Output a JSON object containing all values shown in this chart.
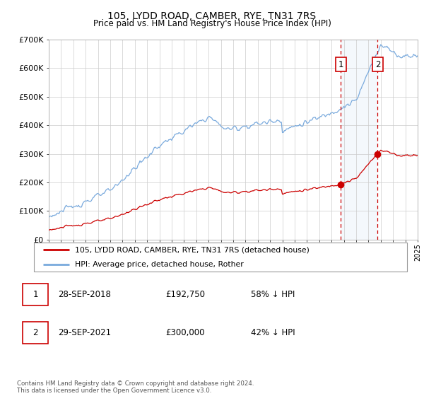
{
  "title": "105, LYDD ROAD, CAMBER, RYE, TN31 7RS",
  "subtitle": "Price paid vs. HM Land Registry's House Price Index (HPI)",
  "legend_line1": "105, LYDD ROAD, CAMBER, RYE, TN31 7RS (detached house)",
  "legend_line2": "HPI: Average price, detached house, Rother",
  "footer": "Contains HM Land Registry data © Crown copyright and database right 2024.\nThis data is licensed under the Open Government Licence v3.0.",
  "transaction1": {
    "label": "1",
    "date": "28-SEP-2018",
    "price": "£192,750",
    "change": "58% ↓ HPI"
  },
  "transaction2": {
    "label": "2",
    "date": "29-SEP-2021",
    "price": "£300,000",
    "change": "42% ↓ HPI"
  },
  "hpi_color": "#7aaadd",
  "price_color": "#cc0000",
  "vline_color": "#cc0000",
  "marker_color": "#cc0000",
  "marker1_x": 2018.75,
  "marker1_y": 192750,
  "marker2_x": 2021.75,
  "marker2_y": 300000,
  "xmin": 1995,
  "xmax": 2025,
  "ymin": 0,
  "ymax": 700000,
  "yticks": [
    0,
    100000,
    200000,
    300000,
    400000,
    500000,
    600000,
    700000
  ],
  "ytick_labels": [
    "£0",
    "£100K",
    "£200K",
    "£300K",
    "£400K",
    "£500K",
    "£600K",
    "£700K"
  ],
  "title_fontsize": 10,
  "subtitle_fontsize": 9
}
